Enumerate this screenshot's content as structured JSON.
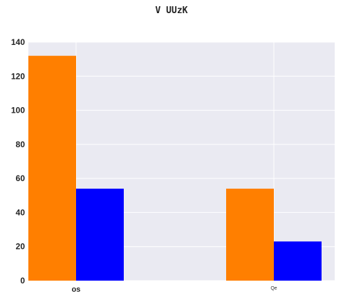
{
  "chart_data": {
    "type": "bar",
    "title": "V UUzK",
    "categories": [
      "os",
      "Qe"
    ],
    "series": [
      {
        "values": [
          132,
          54
        ],
        "color": "#ff7f00"
      },
      {
        "values": [
          54,
          23
        ],
        "color": "#0000ff"
      }
    ],
    "ylim": [
      0,
      140
    ],
    "yticks": [
      0,
      20,
      40,
      60,
      80,
      100,
      120,
      140
    ],
    "grid": true,
    "background": "#eaeaf2"
  }
}
